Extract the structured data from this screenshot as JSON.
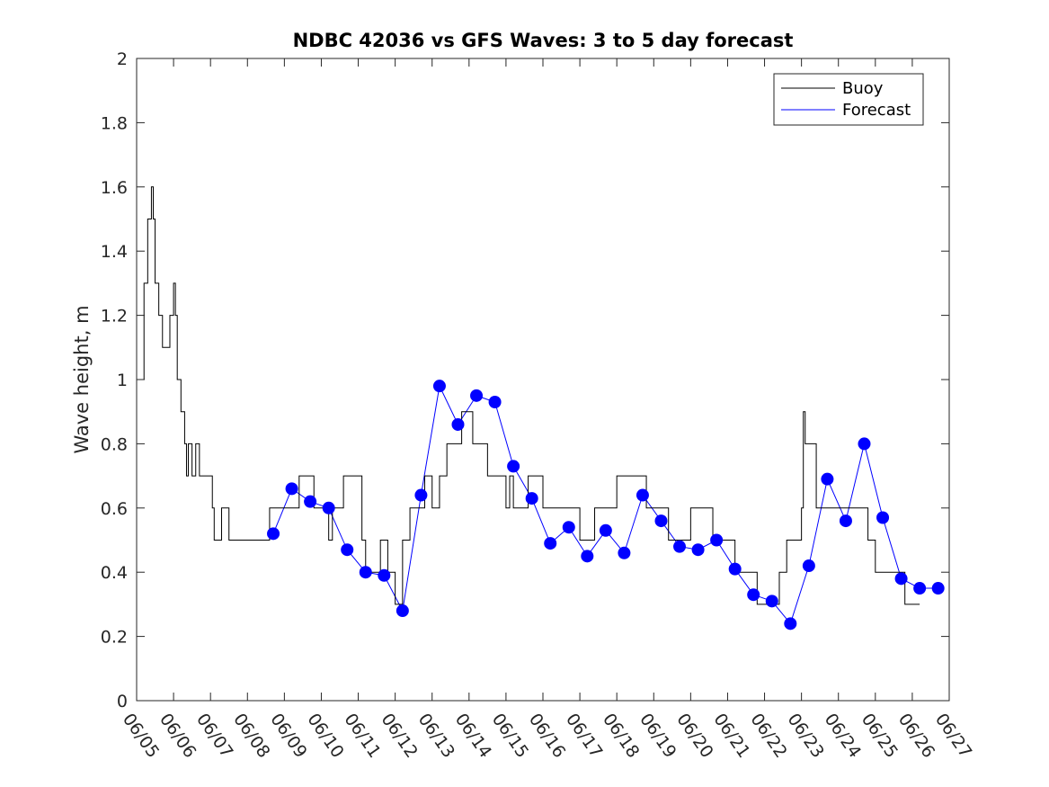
{
  "chart_data": {
    "type": "line",
    "title": "NDBC 42036 vs GFS Waves: 3 to 5 day forecast",
    "xlabel": "",
    "ylabel": "Wave height, m",
    "x_tick_labels": [
      "06/05",
      "06/06",
      "06/07",
      "06/08",
      "06/09",
      "06/10",
      "06/11",
      "06/12",
      "06/13",
      "06/14",
      "06/15",
      "06/16",
      "06/17",
      "06/18",
      "06/19",
      "06/20",
      "06/21",
      "06/22",
      "06/23",
      "06/24",
      "06/25",
      "06/26",
      "06/27"
    ],
    "xlim_days": [
      5,
      27
    ],
    "ylim": [
      0,
      2
    ],
    "y_ticks": [
      0,
      0.2,
      0.4,
      0.6,
      0.8,
      1,
      1.2,
      1.4,
      1.6,
      1.8,
      2
    ],
    "y_tick_labels": [
      "0",
      "0.2",
      "0.4",
      "0.6",
      "0.8",
      "1",
      "1.2",
      "1.4",
      "1.6",
      "1.8",
      "2"
    ],
    "grid": false,
    "legend": {
      "position": "top-right",
      "entries": [
        "Buoy",
        "Forecast"
      ]
    },
    "colors": {
      "buoy": "#000000",
      "forecast": "#0000ff"
    },
    "series": [
      {
        "name": "Buoy",
        "x": [
          5.0,
          5.1,
          5.2,
          5.3,
          5.4,
          5.45,
          5.5,
          5.55,
          5.6,
          5.7,
          5.8,
          5.9,
          6.0,
          6.05,
          6.1,
          6.2,
          6.3,
          6.35,
          6.4,
          6.5,
          6.6,
          6.7,
          6.8,
          6.9,
          7.0,
          7.05,
          7.1,
          7.2,
          7.3,
          7.5,
          7.8,
          8.0,
          8.2,
          8.4,
          8.6,
          8.8,
          9.0,
          9.2,
          9.4,
          9.6,
          9.8,
          10.0,
          10.2,
          10.3,
          10.4,
          10.6,
          10.8,
          11.0,
          11.1,
          11.2,
          11.4,
          11.6,
          11.8,
          12.0,
          12.2,
          12.4,
          12.6,
          12.8,
          12.9,
          13.0,
          13.1,
          13.2,
          13.4,
          13.6,
          13.8,
          14.0,
          14.1,
          14.2,
          14.4,
          14.5,
          14.6,
          14.8,
          15.0,
          15.1,
          15.2,
          15.4,
          15.6,
          15.8,
          16.0,
          16.2,
          16.4,
          16.6,
          16.8,
          17.0,
          17.2,
          17.4,
          17.6,
          17.8,
          18.0,
          18.2,
          18.4,
          18.6,
          18.8,
          19.0,
          19.2,
          19.4,
          19.6,
          19.8,
          20.0,
          20.2,
          20.4,
          20.6,
          20.8,
          21.0,
          21.2,
          21.4,
          21.6,
          21.8,
          22.0,
          22.2,
          22.4,
          22.6,
          22.8,
          23.0,
          23.05,
          23.1,
          23.2,
          23.4,
          23.6,
          23.8,
          24.0,
          24.2,
          24.4,
          24.6,
          24.8,
          25.0,
          25.2,
          25.4,
          25.6,
          25.8,
          26.0,
          26.2
        ],
        "values": [
          1.0,
          1.0,
          1.3,
          1.5,
          1.6,
          1.5,
          1.3,
          1.3,
          1.2,
          1.1,
          1.1,
          1.2,
          1.3,
          1.2,
          1.0,
          0.9,
          0.8,
          0.7,
          0.8,
          0.7,
          0.8,
          0.7,
          0.7,
          0.7,
          0.7,
          0.6,
          0.5,
          0.5,
          0.6,
          0.5,
          0.5,
          0.5,
          0.5,
          0.5,
          0.6,
          0.6,
          0.6,
          0.6,
          0.7,
          0.7,
          0.6,
          0.6,
          0.5,
          0.6,
          0.6,
          0.7,
          0.7,
          0.7,
          0.5,
          0.4,
          0.4,
          0.5,
          0.4,
          0.3,
          0.5,
          0.6,
          0.6,
          0.7,
          0.7,
          0.6,
          0.6,
          0.7,
          0.8,
          0.8,
          0.9,
          0.9,
          0.8,
          0.8,
          0.8,
          0.7,
          0.7,
          0.7,
          0.6,
          0.7,
          0.6,
          0.6,
          0.7,
          0.7,
          0.6,
          0.6,
          0.6,
          0.6,
          0.6,
          0.5,
          0.5,
          0.6,
          0.6,
          0.6,
          0.7,
          0.7,
          0.7,
          0.7,
          0.6,
          0.6,
          0.6,
          0.5,
          0.5,
          0.5,
          0.6,
          0.6,
          0.6,
          0.5,
          0.5,
          0.5,
          0.4,
          0.4,
          0.4,
          0.3,
          0.3,
          0.3,
          0.4,
          0.5,
          0.5,
          0.6,
          0.9,
          0.8,
          0.8,
          0.6,
          0.6,
          0.6,
          0.6,
          0.6,
          0.6,
          0.6,
          0.5,
          0.4,
          0.4,
          0.4,
          0.4,
          0.3,
          0.3,
          0.3
        ]
      },
      {
        "name": "Forecast",
        "x": [
          8.7,
          9.2,
          9.7,
          10.2,
          10.7,
          11.2,
          11.7,
          12.2,
          12.7,
          13.2,
          13.7,
          14.2,
          14.7,
          15.2,
          15.7,
          16.2,
          16.7,
          17.2,
          17.7,
          18.2,
          18.7,
          19.2,
          19.7,
          20.2,
          20.7,
          21.2,
          21.7,
          22.2,
          22.7,
          23.2,
          23.7,
          24.2,
          24.7,
          25.2,
          25.7,
          26.2,
          26.7
        ],
        "values": [
          0.52,
          0.66,
          0.62,
          0.6,
          0.47,
          0.4,
          0.39,
          0.28,
          0.64,
          0.98,
          0.86,
          0.95,
          0.93,
          0.73,
          0.63,
          0.49,
          0.54,
          0.45,
          0.53,
          0.46,
          0.64,
          0.56,
          0.48,
          0.47,
          0.5,
          0.41,
          0.33,
          0.31,
          0.24,
          0.42,
          0.69,
          0.56,
          0.8,
          0.57,
          0.38,
          0.35,
          0.35
        ]
      }
    ]
  }
}
